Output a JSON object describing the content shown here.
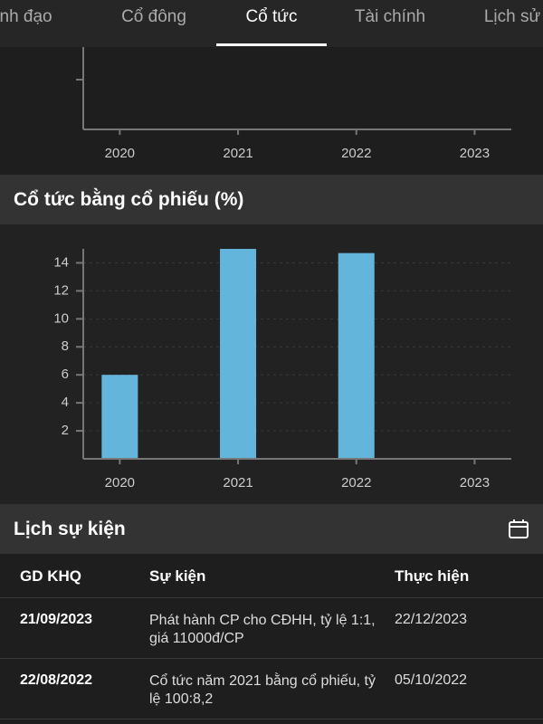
{
  "tabs": [
    "Lãnh đạo",
    "Cổ đông",
    "Cổ tức",
    "Tài chính",
    "Lịch sử"
  ],
  "active_tab": 2,
  "chart_data": [
    {
      "type": "bar",
      "categories": [
        "2020",
        "2021",
        "2022",
        "2023"
      ]
    },
    {
      "type": "bar",
      "title": "Cổ tức bằng cổ phiếu (%)",
      "categories": [
        "2020",
        "2021",
        "2022",
        "2023"
      ],
      "values": [
        6,
        15,
        14.7,
        null
      ],
      "color": "#64b5dc",
      "ylim": [
        0,
        15
      ],
      "yticks": [
        2,
        4,
        6,
        8,
        10,
        12,
        14
      ],
      "grid": true
    }
  ],
  "events": {
    "title": "Lịch sự kiện",
    "headers": [
      "GD KHQ",
      "Sự kiện",
      "Thực hiện"
    ],
    "rows": [
      [
        "21/09/2023",
        "Phát hành CP cho CĐHH, tỷ lệ 1:1, giá 11000đ/CP",
        "22/12/2023"
      ],
      [
        "22/08/2022",
        "Cổ tức năm 2021 bằng cổ phiếu, tỷ lệ 100:8,2",
        "05/10/2022"
      ]
    ]
  }
}
